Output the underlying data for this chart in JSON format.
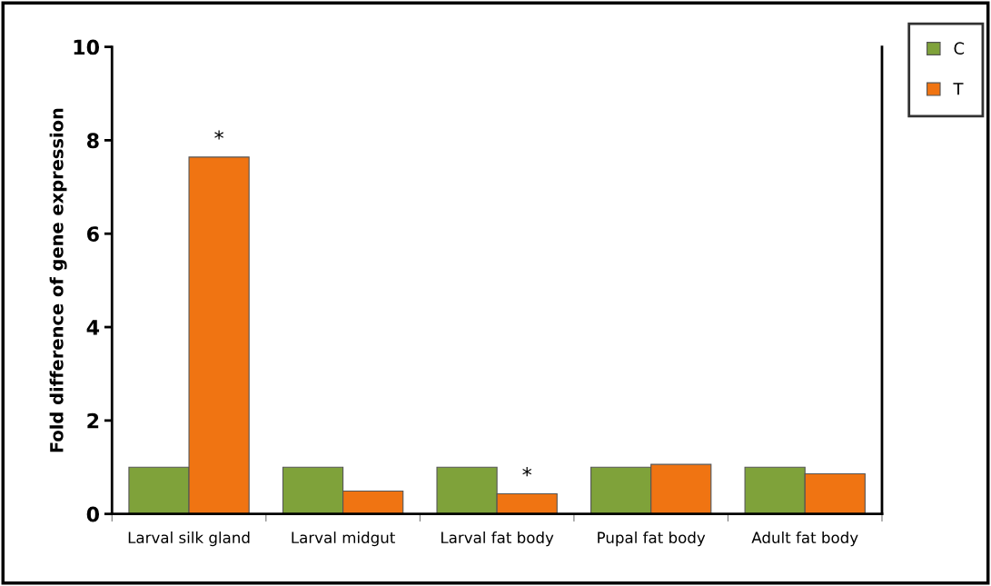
{
  "chart_data": {
    "type": "bar",
    "ylabel": "Fold difference of gene expression",
    "categories": [
      "Larval silk gland",
      "Larval midgut",
      "Larval fat body",
      "Pupal fat body",
      "Adult fat body"
    ],
    "series": [
      {
        "name": "C",
        "color": "#7fa23a",
        "values": [
          1.0,
          1.0,
          1.0,
          1.0,
          1.0
        ]
      },
      {
        "name": "T",
        "color": "#f07412",
        "values": [
          7.64,
          0.49,
          0.43,
          1.06,
          0.86
        ]
      }
    ],
    "ylim": [
      0,
      10
    ],
    "yticks": [
      0,
      2,
      4,
      6,
      8,
      10
    ],
    "grid": false,
    "legend": "top right",
    "annotations": [
      {
        "text": "*",
        "x": "Larval silk gland",
        "y": 7.64
      },
      {
        "text": "*",
        "x": "Larval fat body",
        "y": 0.43
      }
    ]
  }
}
